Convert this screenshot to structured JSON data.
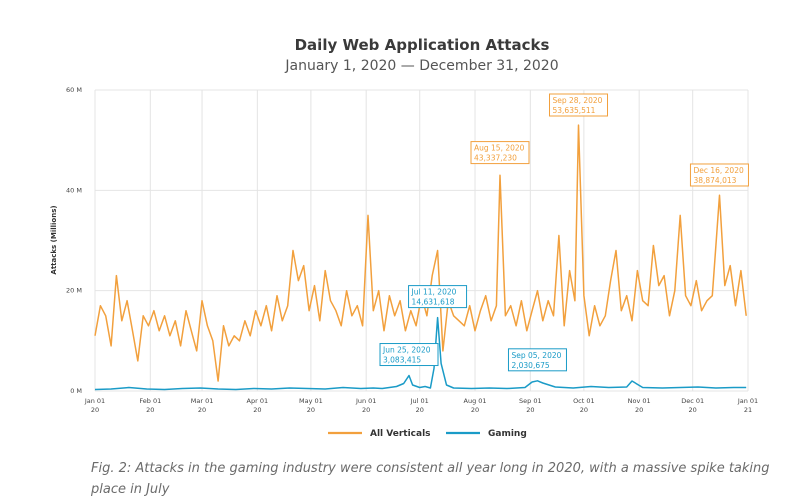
{
  "caption": "Fig. 2: Attacks in the gaming industry were consistent all year long in 2020, with a massive spike taking place in July",
  "colors": {
    "all_verticals": "#f2a03d",
    "gaming": "#1a9bc7",
    "grid": "#e4e4e4",
    "title": "#3a3a3a"
  },
  "chart_data": {
    "type": "line",
    "title": "Daily Web Application Attacks",
    "subtitle": "January 1, 2020 — December 31, 2020",
    "ylabel": "Attacks (Millions)",
    "xlabel": "",
    "ylim": [
      0,
      60
    ],
    "yticks": [
      0,
      20,
      40,
      60
    ],
    "ytick_labels": [
      "0 M",
      "20 M",
      "40 M",
      "60 M"
    ],
    "xticks": [
      {
        "date": "2020-01-01",
        "label": "Jan 01",
        "year": "20"
      },
      {
        "date": "2020-02-01",
        "label": "Feb 01",
        "year": "20"
      },
      {
        "date": "2020-03-01",
        "label": "Mar 01",
        "year": "20"
      },
      {
        "date": "2020-04-01",
        "label": "Apr 01",
        "year": "20"
      },
      {
        "date": "2020-05-01",
        "label": "May 01",
        "year": "20"
      },
      {
        "date": "2020-06-01",
        "label": "Jun 01",
        "year": "20"
      },
      {
        "date": "2020-07-01",
        "label": "Jul 01",
        "year": "20"
      },
      {
        "date": "2020-08-01",
        "label": "Aug 01",
        "year": "20"
      },
      {
        "date": "2020-09-01",
        "label": "Sep 01",
        "year": "20"
      },
      {
        "date": "2020-10-01",
        "label": "Oct 01",
        "year": "20"
      },
      {
        "date": "2020-11-01",
        "label": "Nov 01",
        "year": "20"
      },
      {
        "date": "2020-12-01",
        "label": "Dec 01",
        "year": "20"
      },
      {
        "date": "2021-01-01",
        "label": "Jan 01",
        "year": "21"
      }
    ],
    "grid": true,
    "legend": "bottom-center",
    "series": [
      {
        "name": "All Verticals",
        "color": "#f2a03d",
        "x": [
          "2020-01-01",
          "2020-01-04",
          "2020-01-07",
          "2020-01-10",
          "2020-01-13",
          "2020-01-16",
          "2020-01-19",
          "2020-01-22",
          "2020-01-25",
          "2020-01-28",
          "2020-01-31",
          "2020-02-03",
          "2020-02-06",
          "2020-02-09",
          "2020-02-12",
          "2020-02-15",
          "2020-02-18",
          "2020-02-21",
          "2020-02-24",
          "2020-02-27",
          "2020-03-01",
          "2020-03-04",
          "2020-03-07",
          "2020-03-10",
          "2020-03-13",
          "2020-03-16",
          "2020-03-19",
          "2020-03-22",
          "2020-03-25",
          "2020-03-28",
          "2020-03-31",
          "2020-04-03",
          "2020-04-06",
          "2020-04-09",
          "2020-04-12",
          "2020-04-15",
          "2020-04-18",
          "2020-04-21",
          "2020-04-24",
          "2020-04-27",
          "2020-04-30",
          "2020-05-03",
          "2020-05-06",
          "2020-05-09",
          "2020-05-12",
          "2020-05-15",
          "2020-05-18",
          "2020-05-21",
          "2020-05-24",
          "2020-05-27",
          "2020-05-30",
          "2020-06-02",
          "2020-06-05",
          "2020-06-08",
          "2020-06-11",
          "2020-06-14",
          "2020-06-17",
          "2020-06-20",
          "2020-06-23",
          "2020-06-26",
          "2020-06-29",
          "2020-07-02",
          "2020-07-05",
          "2020-07-08",
          "2020-07-11",
          "2020-07-14",
          "2020-07-17",
          "2020-07-20",
          "2020-07-23",
          "2020-07-26",
          "2020-07-29",
          "2020-08-01",
          "2020-08-04",
          "2020-08-07",
          "2020-08-10",
          "2020-08-13",
          "2020-08-15",
          "2020-08-18",
          "2020-08-21",
          "2020-08-24",
          "2020-08-27",
          "2020-08-30",
          "2020-09-02",
          "2020-09-05",
          "2020-09-08",
          "2020-09-11",
          "2020-09-14",
          "2020-09-17",
          "2020-09-20",
          "2020-09-23",
          "2020-09-26",
          "2020-09-28",
          "2020-10-01",
          "2020-10-04",
          "2020-10-07",
          "2020-10-10",
          "2020-10-13",
          "2020-10-16",
          "2020-10-19",
          "2020-10-22",
          "2020-10-25",
          "2020-10-28",
          "2020-10-31",
          "2020-11-03",
          "2020-11-06",
          "2020-11-09",
          "2020-11-12",
          "2020-11-15",
          "2020-11-18",
          "2020-11-21",
          "2020-11-24",
          "2020-11-27",
          "2020-11-30",
          "2020-12-03",
          "2020-12-06",
          "2020-12-09",
          "2020-12-12",
          "2020-12-16",
          "2020-12-19",
          "2020-12-22",
          "2020-12-25",
          "2020-12-28",
          "2020-12-31"
        ],
        "y": [
          11,
          17,
          15,
          9,
          23,
          14,
          18,
          12,
          6,
          15,
          13,
          16,
          12,
          15,
          11,
          14,
          9,
          16,
          12,
          8,
          18,
          13,
          10,
          2,
          13,
          9,
          11,
          10,
          14,
          11,
          16,
          13,
          17,
          12,
          19,
          14,
          17,
          28,
          22,
          25,
          16,
          21,
          14,
          24,
          18,
          16,
          13,
          20,
          15,
          17,
          13,
          35,
          16,
          20,
          12,
          19,
          15,
          18,
          12,
          16,
          13,
          19,
          15,
          23,
          28,
          8,
          18,
          15,
          14,
          13,
          17,
          12,
          16,
          19,
          14,
          17,
          43,
          15,
          17,
          13,
          18,
          12,
          16,
          20,
          14,
          18,
          15,
          31,
          13,
          24,
          18,
          53,
          19,
          11,
          17,
          13,
          15,
          22,
          28,
          16,
          19,
          14,
          24,
          18,
          17,
          29,
          21,
          23,
          15,
          20,
          35,
          19,
          17,
          22,
          16,
          18,
          19,
          39,
          21,
          25,
          17,
          24,
          15
        ]
      },
      {
        "name": "Gaming",
        "color": "#1a9bc7",
        "x": [
          "2020-01-01",
          "2020-01-10",
          "2020-01-20",
          "2020-01-30",
          "2020-02-09",
          "2020-02-19",
          "2020-02-29",
          "2020-03-10",
          "2020-03-20",
          "2020-03-30",
          "2020-04-09",
          "2020-04-19",
          "2020-04-29",
          "2020-05-09",
          "2020-05-19",
          "2020-05-29",
          "2020-06-05",
          "2020-06-10",
          "2020-06-18",
          "2020-06-22",
          "2020-06-25",
          "2020-06-27",
          "2020-07-01",
          "2020-07-04",
          "2020-07-07",
          "2020-07-09",
          "2020-07-11",
          "2020-07-13",
          "2020-07-16",
          "2020-07-20",
          "2020-07-30",
          "2020-08-09",
          "2020-08-19",
          "2020-08-29",
          "2020-09-02",
          "2020-09-05",
          "2020-09-08",
          "2020-09-15",
          "2020-09-25",
          "2020-10-05",
          "2020-10-15",
          "2020-10-25",
          "2020-10-28",
          "2020-11-03",
          "2020-11-14",
          "2020-11-24",
          "2020-12-04",
          "2020-12-14",
          "2020-12-24",
          "2020-12-31"
        ],
        "y": [
          0.3,
          0.4,
          0.7,
          0.4,
          0.3,
          0.5,
          0.6,
          0.4,
          0.3,
          0.5,
          0.4,
          0.6,
          0.5,
          0.4,
          0.7,
          0.5,
          0.6,
          0.5,
          0.9,
          1.5,
          3.08,
          1.2,
          0.7,
          0.9,
          0.6,
          4.5,
          14.63,
          5.5,
          1.2,
          0.6,
          0.5,
          0.6,
          0.5,
          0.7,
          1.8,
          2.03,
          1.6,
          0.8,
          0.6,
          0.9,
          0.7,
          0.8,
          2.0,
          0.7,
          0.6,
          0.7,
          0.8,
          0.6,
          0.7,
          0.7
        ]
      }
    ],
    "annotations": [
      {
        "series": "Gaming",
        "date": "2020-06-25",
        "label": "Jun 25, 2020",
        "value_text": "3,083,415",
        "y": 3.083415
      },
      {
        "series": "Gaming",
        "date": "2020-07-11",
        "label": "Jul 11, 2020",
        "value_text": "14,631,618",
        "y": 14.631618
      },
      {
        "series": "All Verticals",
        "date": "2020-08-15",
        "label": "Aug 15, 2020",
        "value_text": "43,337,230",
        "y": 43.33723
      },
      {
        "series": "Gaming",
        "date": "2020-09-05",
        "label": "Sep 05, 2020",
        "value_text": "2,030,675",
        "y": 2.030675
      },
      {
        "series": "All Verticals",
        "date": "2020-09-28",
        "label": "Sep 28, 2020",
        "value_text": "53,635,511",
        "y": 53.635511
      },
      {
        "series": "All Verticals",
        "date": "2020-12-16",
        "label": "Dec 16, 2020",
        "value_text": "38,874,013",
        "y": 38.874013
      }
    ]
  }
}
